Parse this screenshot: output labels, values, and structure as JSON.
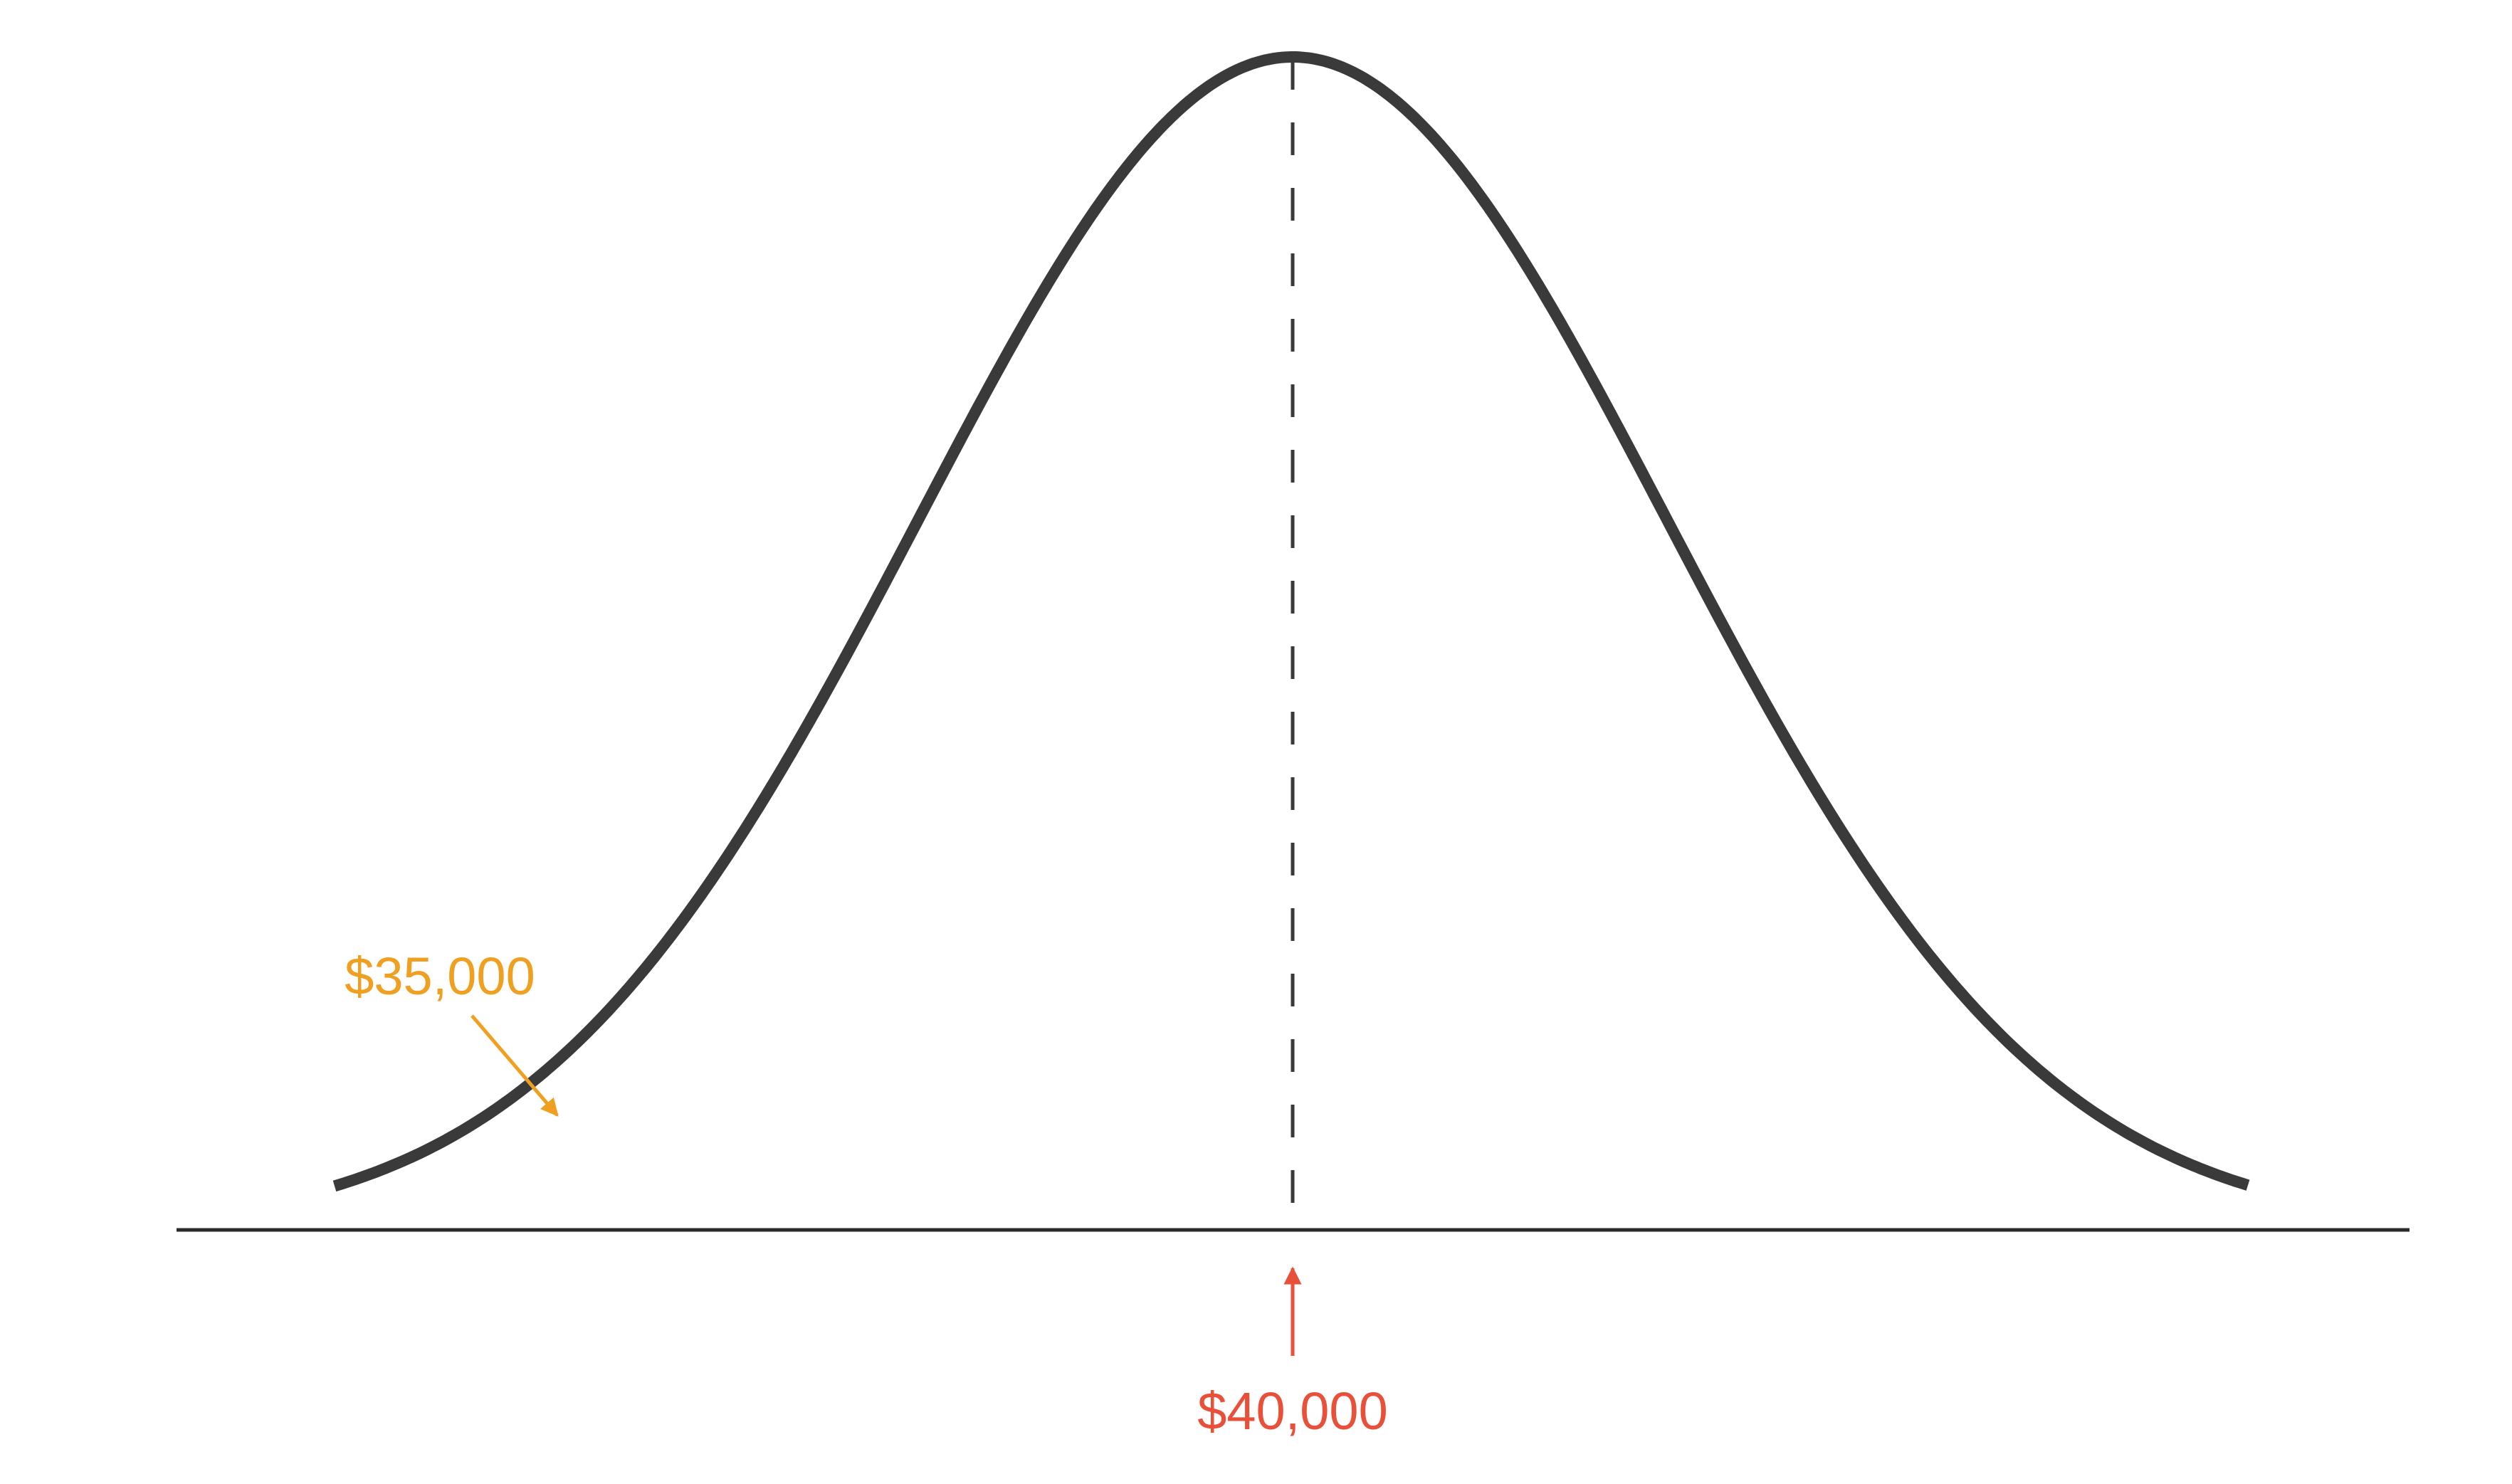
{
  "diagram": {
    "type": "normal-distribution-curve",
    "colors": {
      "curve": "#3a3a3a",
      "axis": "#2a2a2a",
      "mean_marker": "#e8503a",
      "point_marker": "#f0a020"
    },
    "mean_label": "$40,000",
    "point_label": "$35,000"
  }
}
